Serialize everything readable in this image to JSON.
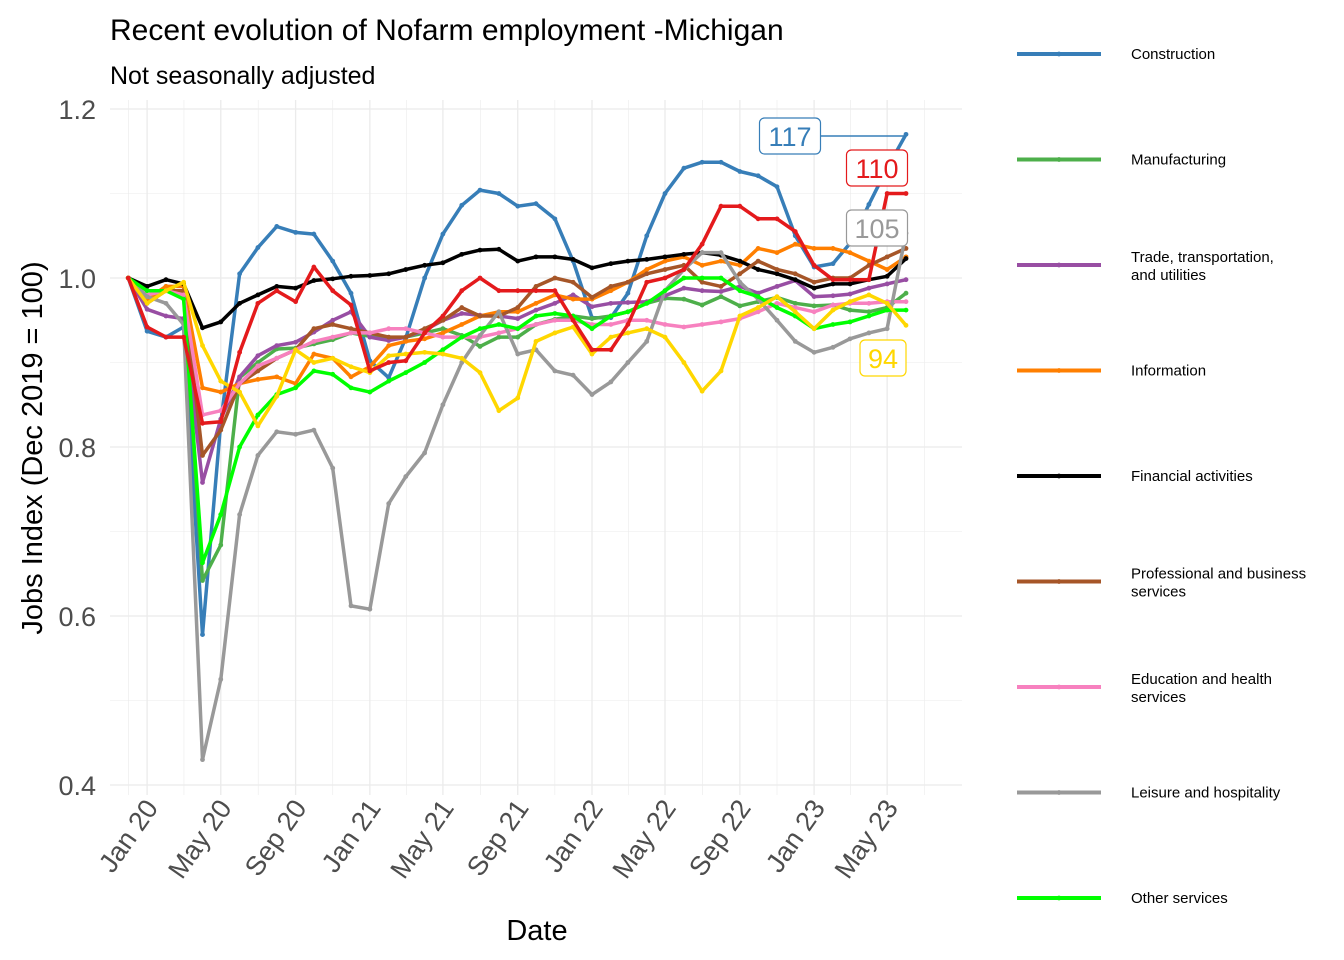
{
  "chart_data": {
    "type": "line",
    "title": "Recent evolution of Nofarm employment -Michigan",
    "subtitle": "Not seasonally adjusted",
    "xlabel": "Date",
    "ylabel": "Jobs Index (Dec 2019 = 100)",
    "ylim": [
      0.4,
      1.2
    ],
    "yticks": [
      "0.4",
      "0.6",
      "0.8",
      "1.0",
      "1.2"
    ],
    "xlim": [
      "2019-11-01",
      "2023-09-01"
    ],
    "xticks": [
      {
        "date": "2020-01-01",
        "label": "Jan 20"
      },
      {
        "date": "2020-05-01",
        "label": "May 20"
      },
      {
        "date": "2020-09-01",
        "label": "Sep 20"
      },
      {
        "date": "2021-01-01",
        "label": "Jan 21"
      },
      {
        "date": "2021-05-01",
        "label": "May 21"
      },
      {
        "date": "2021-09-01",
        "label": "Sep 21"
      },
      {
        "date": "2022-01-01",
        "label": "Jan 22"
      },
      {
        "date": "2022-05-01",
        "label": "May 22"
      },
      {
        "date": "2022-09-01",
        "label": "Sep 22"
      },
      {
        "date": "2023-01-01",
        "label": "Jan 23"
      },
      {
        "date": "2023-05-01",
        "label": "May 23"
      }
    ],
    "grid": true,
    "legend_position": "right",
    "x": [
      "2019-12",
      "2020-01",
      "2020-02",
      "2020-03",
      "2020-04",
      "2020-05",
      "2020-06",
      "2020-07",
      "2020-08",
      "2020-09",
      "2020-10",
      "2020-11",
      "2020-12",
      "2021-01",
      "2021-02",
      "2021-03",
      "2021-04",
      "2021-05",
      "2021-06",
      "2021-07",
      "2021-08",
      "2021-09",
      "2021-10",
      "2021-11",
      "2021-12",
      "2022-01",
      "2022-02",
      "2022-03",
      "2022-04",
      "2022-05",
      "2022-06",
      "2022-07",
      "2022-08",
      "2022-09",
      "2022-10",
      "2022-11",
      "2022-12",
      "2023-01",
      "2023-02",
      "2023-03",
      "2023-04",
      "2023-05",
      "2023-06"
    ],
    "series": [
      {
        "name": "Construction",
        "color": "#377eb8",
        "values": [
          1.0,
          0.937,
          0.93,
          0.942,
          0.578,
          0.829,
          1.005,
          1.036,
          1.061,
          1.054,
          1.052,
          1.02,
          0.982,
          0.902,
          0.882,
          0.929,
          1.0,
          1.052,
          1.086,
          1.104,
          1.1,
          1.085,
          1.088,
          1.07,
          1.02,
          0.953,
          0.953,
          0.982,
          1.05,
          1.1,
          1.13,
          1.137,
          1.137,
          1.126,
          1.121,
          1.108,
          1.05,
          1.013,
          1.017,
          1.041,
          1.087,
          1.13,
          1.17
        ]
      },
      {
        "name": "Manufacturing",
        "color": "#4daf4a",
        "values": [
          1.0,
          0.975,
          0.99,
          0.98,
          0.642,
          0.684,
          0.882,
          0.9,
          0.916,
          0.917,
          0.922,
          0.927,
          0.935,
          0.931,
          0.929,
          0.93,
          0.935,
          0.94,
          0.932,
          0.919,
          0.93,
          0.93,
          0.945,
          0.951,
          0.955,
          0.952,
          0.955,
          0.96,
          0.97,
          0.976,
          0.975,
          0.968,
          0.978,
          0.967,
          0.972,
          0.977,
          0.97,
          0.967,
          0.968,
          0.962,
          0.96,
          0.965,
          0.982
        ]
      },
      {
        "name": "Trade, transportation, and utilities",
        "color": "#984ea3",
        "values": [
          1.0,
          0.963,
          0.955,
          0.952,
          0.758,
          0.833,
          0.883,
          0.908,
          0.92,
          0.924,
          0.936,
          0.95,
          0.96,
          0.93,
          0.926,
          0.93,
          0.938,
          0.95,
          0.958,
          0.956,
          0.955,
          0.952,
          0.962,
          0.97,
          0.98,
          0.966,
          0.97,
          0.971,
          0.972,
          0.979,
          0.988,
          0.985,
          0.984,
          0.99,
          0.982,
          0.99,
          0.997,
          0.978,
          0.979,
          0.981,
          0.988,
          0.993,
          0.998
        ]
      },
      {
        "name": "Information",
        "color": "#ff7f00",
        "values": [
          1.0,
          0.975,
          0.99,
          0.99,
          0.87,
          0.865,
          0.875,
          0.88,
          0.883,
          0.875,
          0.91,
          0.905,
          0.883,
          0.895,
          0.92,
          0.925,
          0.928,
          0.935,
          0.945,
          0.955,
          0.96,
          0.96,
          0.97,
          0.98,
          0.975,
          0.975,
          0.985,
          0.995,
          1.01,
          1.02,
          1.025,
          1.015,
          1.02,
          1.015,
          1.035,
          1.03,
          1.04,
          1.035,
          1.035,
          1.03,
          1.02,
          1.01,
          1.025
        ]
      },
      {
        "name": "Financial activities",
        "color": "#000000",
        "values": [
          1.0,
          0.99,
          0.998,
          0.993,
          0.941,
          0.948,
          0.97,
          0.98,
          0.99,
          0.988,
          0.997,
          0.999,
          1.002,
          1.003,
          1.005,
          1.01,
          1.015,
          1.018,
          1.028,
          1.033,
          1.034,
          1.02,
          1.025,
          1.025,
          1.022,
          1.012,
          1.017,
          1.02,
          1.022,
          1.025,
          1.028,
          1.03,
          1.027,
          1.02,
          1.01,
          1.005,
          0.998,
          0.988,
          0.993,
          0.993,
          0.998,
          1.002,
          1.023
        ]
      },
      {
        "name": "Professional and business services",
        "color": "#a65628",
        "values": [
          1.0,
          0.97,
          0.985,
          0.985,
          0.79,
          0.82,
          0.875,
          0.89,
          0.905,
          0.915,
          0.94,
          0.945,
          0.94,
          0.935,
          0.93,
          0.93,
          0.94,
          0.95,
          0.965,
          0.955,
          0.955,
          0.965,
          0.99,
          1.0,
          0.995,
          0.977,
          0.99,
          0.995,
          1.005,
          1.01,
          1.015,
          0.995,
          0.99,
          1.005,
          1.02,
          1.01,
          1.005,
          0.995,
          1.0,
          1.0,
          1.015,
          1.025,
          1.035
        ]
      },
      {
        "name": "Education and health services",
        "color": "#f781bf",
        "values": [
          1.0,
          0.98,
          0.985,
          0.98,
          0.838,
          0.843,
          0.875,
          0.896,
          0.905,
          0.915,
          0.925,
          0.93,
          0.935,
          0.935,
          0.94,
          0.94,
          0.935,
          0.93,
          0.93,
          0.93,
          0.935,
          0.94,
          0.945,
          0.95,
          0.95,
          0.945,
          0.945,
          0.95,
          0.95,
          0.945,
          0.942,
          0.945,
          0.948,
          0.952,
          0.96,
          0.97,
          0.965,
          0.96,
          0.968,
          0.97,
          0.97,
          0.972,
          0.972
        ]
      },
      {
        "name": "Leisure and hospitality",
        "color": "#999999",
        "values": [
          1.0,
          0.978,
          0.97,
          0.945,
          0.43,
          0.525,
          0.72,
          0.79,
          0.818,
          0.815,
          0.82,
          0.775,
          0.612,
          0.608,
          0.733,
          0.765,
          0.793,
          0.85,
          0.9,
          0.932,
          0.96,
          0.91,
          0.915,
          0.89,
          0.885,
          0.862,
          0.877,
          0.9,
          0.925,
          0.985,
          1.01,
          1.03,
          1.03,
          0.995,
          0.975,
          0.95,
          0.925,
          0.912,
          0.918,
          0.928,
          0.935,
          0.94,
          1.053
        ]
      },
      {
        "name": "Other services",
        "color": "#00ff00",
        "values": [
          1.0,
          0.985,
          0.985,
          0.975,
          0.663,
          0.72,
          0.8,
          0.838,
          0.862,
          0.87,
          0.89,
          0.886,
          0.87,
          0.865,
          0.878,
          0.888,
          0.9,
          0.915,
          0.93,
          0.94,
          0.945,
          0.94,
          0.955,
          0.958,
          0.955,
          0.94,
          0.955,
          0.96,
          0.97,
          0.985,
          1.0,
          1.0,
          1.0,
          0.985,
          0.978,
          0.965,
          0.955,
          0.94,
          0.945,
          0.948,
          0.955,
          0.962,
          0.962
        ]
      },
      {
        "name": "",
        "color": "#ffd700",
        "values": [
          1.0,
          0.97,
          0.985,
          0.995,
          0.92,
          0.878,
          0.865,
          0.825,
          0.86,
          0.915,
          0.9,
          0.905,
          0.895,
          0.888,
          0.908,
          0.91,
          0.912,
          0.91,
          0.905,
          0.888,
          0.843,
          0.858,
          0.925,
          0.935,
          0.942,
          0.91,
          0.93,
          0.935,
          0.94,
          0.93,
          0.9,
          0.866,
          0.89,
          0.955,
          0.965,
          0.978,
          0.96,
          0.94,
          0.962,
          0.972,
          0.98,
          0.97,
          0.944
        ]
      }
    ],
    "end_labels": [
      {
        "text": "117",
        "color": "#377eb8"
      },
      {
        "text": "110",
        "color": "#e41a1c"
      },
      {
        "text": "105",
        "color": "#999999"
      },
      {
        "text": "94",
        "color": "#ffd700"
      }
    ],
    "extra_series": [
      {
        "name": "",
        "color": "#e41a1c",
        "values": [
          1.0,
          0.942,
          0.93,
          0.93,
          0.828,
          0.83,
          0.912,
          0.97,
          0.985,
          0.972,
          1.013,
          0.985,
          0.968,
          0.89,
          0.9,
          0.902,
          0.935,
          0.955,
          0.985,
          1.0,
          0.985,
          0.985,
          0.985,
          0.985,
          0.95,
          0.915,
          0.915,
          0.945,
          0.995,
          1.0,
          1.01,
          1.04,
          1.085,
          1.085,
          1.07,
          1.07,
          1.055,
          1.015,
          0.998,
          0.998,
          0.998,
          1.1,
          1.1
        ]
      }
    ]
  }
}
